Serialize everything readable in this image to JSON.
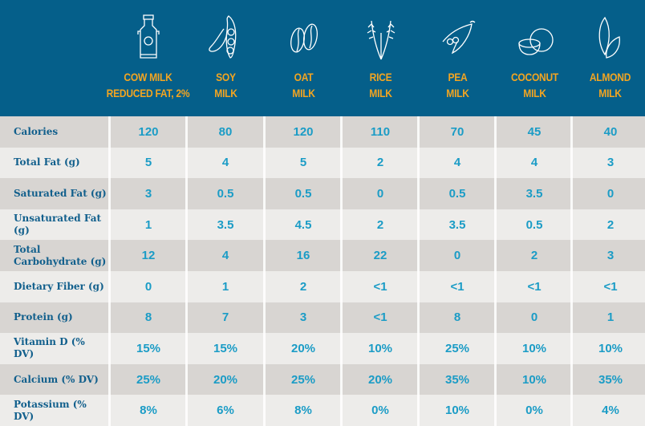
{
  "columns": [
    {
      "name": "COW MILK",
      "name2": "REDUCED FAT, 2%",
      "icon": "milk-can-icon"
    },
    {
      "name": "SOY",
      "name2": "MILK",
      "icon": "soybean-icon"
    },
    {
      "name": "OAT",
      "name2": "MILK",
      "icon": "oat-grain-icon"
    },
    {
      "name": "RICE",
      "name2": "MILK",
      "icon": "rice-stalk-icon"
    },
    {
      "name": "PEA",
      "name2": "MILK",
      "icon": "pea-pod-icon"
    },
    {
      "name": "COCONUT",
      "name2": "MILK",
      "icon": "coconut-icon"
    },
    {
      "name": "ALMOND",
      "name2": "MILK",
      "icon": "almond-icon"
    }
  ],
  "rows": [
    {
      "label": "Calories",
      "values": [
        "120",
        "80",
        "120",
        "110",
        "70",
        "45",
        "40"
      ]
    },
    {
      "label": "Total Fat (g)",
      "values": [
        "5",
        "4",
        "5",
        "2",
        "4",
        "4",
        "3"
      ]
    },
    {
      "label": "Saturated Fat (g)",
      "values": [
        "3",
        "0.5",
        "0.5",
        "0",
        "0.5",
        "3.5",
        "0"
      ]
    },
    {
      "label": "Unsaturated Fat (g)",
      "values": [
        "1",
        "3.5",
        "4.5",
        "2",
        "3.5",
        "0.5",
        "2"
      ]
    },
    {
      "label": "Total Carbohydrate (g)",
      "values": [
        "12",
        "4",
        "16",
        "22",
        "0",
        "2",
        "3"
      ]
    },
    {
      "label": "Dietary Fiber (g)",
      "values": [
        "0",
        "1",
        "2",
        "<1",
        "<1",
        "<1",
        "<1"
      ]
    },
    {
      "label": "Protein (g)",
      "values": [
        "8",
        "7",
        "3",
        "<1",
        "8",
        "0",
        "1"
      ]
    },
    {
      "label": "Vitamin D (% DV)",
      "values": [
        "15%",
        "15%",
        "20%",
        "10%",
        "25%",
        "10%",
        "10%"
      ]
    },
    {
      "label": "Calcium (% DV)",
      "values": [
        "25%",
        "20%",
        "25%",
        "20%",
        "35%",
        "10%",
        "35%"
      ]
    },
    {
      "label": "Potassium (% DV)",
      "values": [
        "8%",
        "6%",
        "8%",
        "0%",
        "10%",
        "0%",
        "4%"
      ]
    }
  ],
  "colors": {
    "header": "#055f8a",
    "column_title": "#f3a521",
    "row_label": "#115f8c",
    "value": "#1b9cc6"
  }
}
